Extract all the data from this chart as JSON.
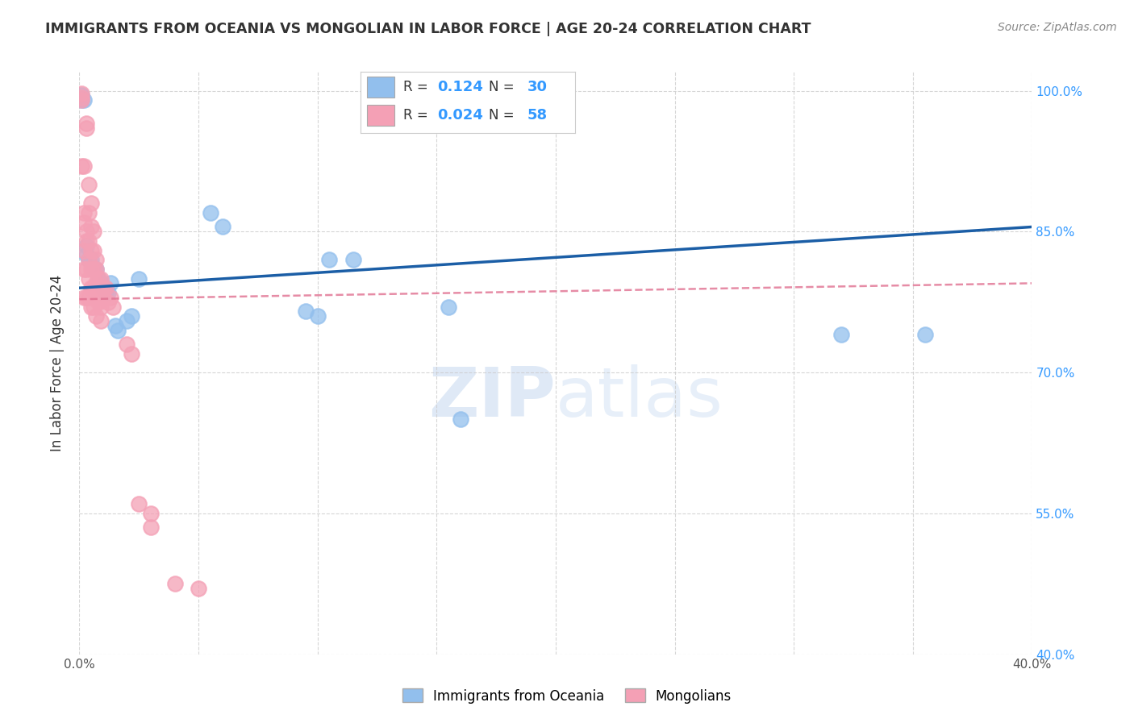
{
  "title": "IMMIGRANTS FROM OCEANIA VS MONGOLIAN IN LABOR FORCE | AGE 20-24 CORRELATION CHART",
  "source": "Source: ZipAtlas.com",
  "ylabel": "In Labor Force | Age 20-24",
  "xlim": [
    0.0,
    0.4
  ],
  "ylim": [
    0.4,
    1.02
  ],
  "yticks_right": [
    0.4,
    0.55,
    0.7,
    0.85,
    1.0
  ],
  "ytick_labels_right": [
    "40.0%",
    "55.0%",
    "70.0%",
    "85.0%",
    "100.0%"
  ],
  "xticks": [
    0.0,
    0.05,
    0.1,
    0.15,
    0.2,
    0.25,
    0.3,
    0.35,
    0.4
  ],
  "xtick_labels": [
    "0.0%",
    "",
    "",
    "",
    "",
    "",
    "",
    "",
    "40.0%"
  ],
  "blue_R": 0.124,
  "blue_N": 30,
  "pink_R": 0.024,
  "pink_N": 58,
  "blue_color": "#92BFED",
  "pink_color": "#F4A0B5",
  "blue_line_color": "#1B5EA6",
  "pink_line_color": "#E07090",
  "watermark_zip": "ZIP",
  "watermark_atlas": "atlas",
  "legend_label_blue": "Immigrants from Oceania",
  "legend_label_pink": "Mongolians",
  "blue_x": [
    0.001,
    0.001,
    0.002,
    0.003,
    0.003,
    0.004,
    0.005,
    0.006,
    0.007,
    0.008,
    0.009,
    0.01,
    0.011,
    0.012,
    0.013,
    0.015,
    0.016,
    0.02,
    0.022,
    0.025,
    0.055,
    0.06,
    0.095,
    0.1,
    0.105,
    0.115,
    0.155,
    0.16,
    0.32,
    0.355
  ],
  "blue_y": [
    0.99,
    0.995,
    0.99,
    0.835,
    0.825,
    0.82,
    0.82,
    0.81,
    0.81,
    0.8,
    0.795,
    0.79,
    0.785,
    0.785,
    0.795,
    0.75,
    0.745,
    0.755,
    0.76,
    0.8,
    0.87,
    0.855,
    0.765,
    0.76,
    0.82,
    0.82,
    0.77,
    0.65,
    0.74,
    0.74
  ],
  "pink_x": [
    0.001,
    0.001,
    0.001,
    0.001,
    0.002,
    0.002,
    0.002,
    0.002,
    0.002,
    0.002,
    0.003,
    0.003,
    0.003,
    0.003,
    0.003,
    0.003,
    0.004,
    0.004,
    0.004,
    0.004,
    0.004,
    0.004,
    0.005,
    0.005,
    0.005,
    0.005,
    0.005,
    0.005,
    0.006,
    0.006,
    0.006,
    0.006,
    0.006,
    0.007,
    0.007,
    0.007,
    0.007,
    0.007,
    0.008,
    0.008,
    0.008,
    0.009,
    0.009,
    0.009,
    0.009,
    0.01,
    0.01,
    0.011,
    0.012,
    0.013,
    0.014,
    0.02,
    0.022,
    0.025,
    0.03,
    0.03,
    0.04,
    0.05
  ],
  "pink_y": [
    0.997,
    0.993,
    0.99,
    0.92,
    0.92,
    0.87,
    0.86,
    0.83,
    0.81,
    0.78,
    0.965,
    0.96,
    0.85,
    0.84,
    0.81,
    0.78,
    0.9,
    0.87,
    0.84,
    0.82,
    0.8,
    0.78,
    0.88,
    0.855,
    0.83,
    0.81,
    0.79,
    0.77,
    0.85,
    0.83,
    0.81,
    0.79,
    0.77,
    0.82,
    0.81,
    0.795,
    0.78,
    0.76,
    0.8,
    0.79,
    0.775,
    0.8,
    0.79,
    0.77,
    0.755,
    0.79,
    0.78,
    0.79,
    0.775,
    0.78,
    0.77,
    0.73,
    0.72,
    0.56,
    0.55,
    0.535,
    0.475,
    0.47
  ]
}
